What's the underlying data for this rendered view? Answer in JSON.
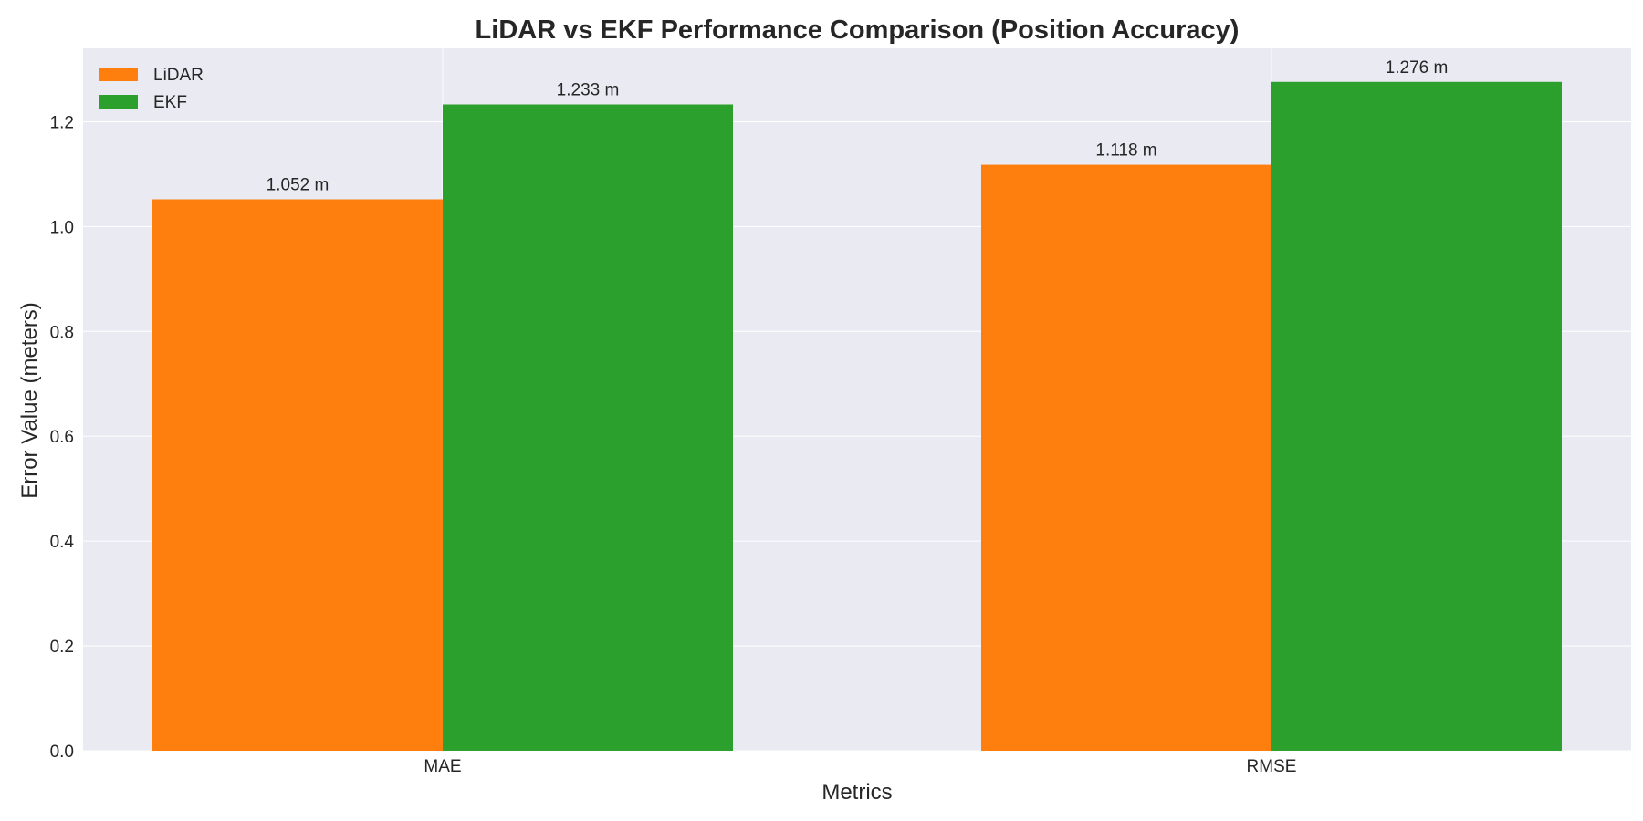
{
  "chart_data": {
    "type": "bar",
    "title": "LiDAR vs EKF Performance Comparison (Position Accuracy)",
    "xlabel": "Metrics",
    "ylabel": "Error Value (meters)",
    "categories": [
      "MAE",
      "RMSE"
    ],
    "series": [
      {
        "name": "LiDAR",
        "color": "#ff7f0e",
        "values": [
          1.052,
          1.118
        ],
        "labels": [
          "1.052 m",
          "1.118 m"
        ]
      },
      {
        "name": "EKF",
        "color": "#2ca02c",
        "values": [
          1.233,
          1.276
        ],
        "labels": [
          "1.233 m",
          "1.276 m"
        ]
      }
    ],
    "ylim": [
      0,
      1.34
    ],
    "yticks": [
      "0.0",
      "0.2",
      "0.4",
      "0.6",
      "0.8",
      "1.0",
      "1.2"
    ],
    "grid": true,
    "legend_position": "top-left",
    "background_color": "#eaeaf2"
  }
}
